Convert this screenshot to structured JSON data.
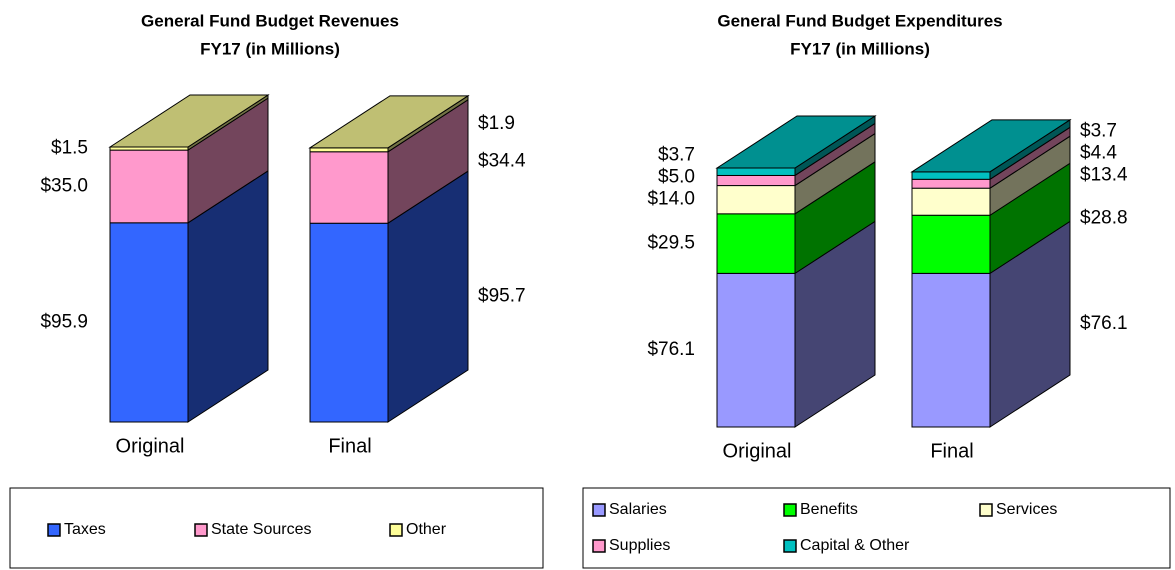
{
  "chart_data": [
    {
      "type": "bar3d_stacked",
      "title": "General Fund Budget Revenues",
      "subtitle": "FY17 (in Millions)",
      "categories": [
        "Original",
        "Final"
      ],
      "series": [
        {
          "name": "Taxes",
          "color": "#3366ff",
          "values": [
            95.9,
            95.7
          ],
          "value_labels": [
            "$95.9",
            "$95.7"
          ]
        },
        {
          "name": "State Sources",
          "color": "#ff99cc",
          "values": [
            35.0,
            34.4
          ],
          "value_labels": [
            "$35.0",
            "$34.4"
          ]
        },
        {
          "name": "Other",
          "color": "#ffff99",
          "values": [
            1.5,
            1.9
          ],
          "value_labels": [
            "$1.5",
            "$1.9"
          ]
        }
      ]
    },
    {
      "type": "bar3d_stacked",
      "title": "General Fund Budget Expenditures",
      "subtitle": "FY17 (in Millions)",
      "categories": [
        "Original",
        "Final"
      ],
      "series": [
        {
          "name": "Salaries",
          "color": "#9999ff",
          "values": [
            76.1,
            76.1
          ],
          "value_labels": [
            "$76.1",
            "$76.1"
          ]
        },
        {
          "name": "Benefits",
          "color": "#00ff00",
          "values": [
            29.5,
            28.8
          ],
          "value_labels": [
            "$29.5",
            "$28.8"
          ]
        },
        {
          "name": "Services",
          "color": "#ffffcc",
          "values": [
            14.0,
            13.4
          ],
          "value_labels": [
            "$14.0",
            "$13.4"
          ]
        },
        {
          "name": "Supplies",
          "color": "#ff99cc",
          "values": [
            5.0,
            4.4
          ],
          "value_labels": [
            "$5.0",
            "$4.4"
          ]
        },
        {
          "name": "Capital & Other",
          "color": "#00c0c0",
          "values": [
            3.7,
            3.7
          ],
          "value_labels": [
            "$3.7",
            "$3.7"
          ]
        }
      ]
    }
  ]
}
